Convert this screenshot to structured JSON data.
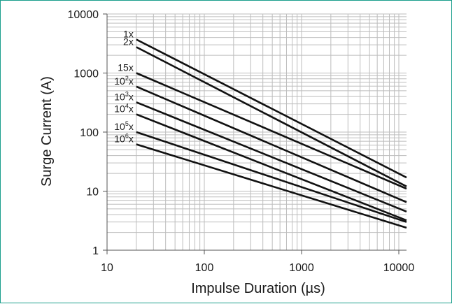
{
  "chart_data": {
    "type": "line",
    "xscale": "log",
    "yscale": "log",
    "xlabel": "Impulse Duration (µs)",
    "ylabel": "Surge Current (A)",
    "xlim": [
      10,
      12000
    ],
    "ylim": [
      1,
      10000
    ],
    "x_ticks": [
      {
        "value": 10,
        "label": "10"
      },
      {
        "value": 100,
        "label": "100"
      },
      {
        "value": 1000,
        "label": "1000"
      },
      {
        "value": 10000,
        "label": "10000"
      }
    ],
    "y_ticks": [
      {
        "value": 1,
        "label": "1"
      },
      {
        "value": 10,
        "label": "10"
      },
      {
        "value": 100,
        "label": "100"
      },
      {
        "value": 1000,
        "label": "1000"
      },
      {
        "value": 10000,
        "label": "10000"
      }
    ],
    "grid": true,
    "line_color": "#111111",
    "grid_color": "#bdbdbd",
    "frame_color": "#1a9e8c",
    "series": [
      {
        "name": "1x",
        "base": "1x",
        "sup": "",
        "points": [
          [
            20,
            3700
          ],
          [
            12000,
            17
          ]
        ]
      },
      {
        "name": "2x",
        "base": "2x",
        "sup": "",
        "points": [
          [
            20,
            2750
          ],
          [
            12000,
            12
          ]
        ]
      },
      {
        "name": "15x",
        "base": "15x",
        "sup": "",
        "points": [
          [
            20,
            1000
          ],
          [
            12000,
            11
          ]
        ]
      },
      {
        "name": "10²x",
        "base": "10",
        "sup": "2",
        "points": [
          [
            20,
            590
          ],
          [
            12000,
            6.5
          ]
        ]
      },
      {
        "name": "10³x",
        "base": "10",
        "sup": "3",
        "points": [
          [
            20,
            320
          ],
          [
            12000,
            4.5
          ]
        ]
      },
      {
        "name": "10⁴x",
        "base": "10",
        "sup": "4",
        "points": [
          [
            20,
            200
          ],
          [
            12000,
            3.2
          ]
        ]
      },
      {
        "name": "10⁵x",
        "base": "10",
        "sup": "5",
        "points": [
          [
            20,
            100
          ],
          [
            12000,
            3.0
          ]
        ]
      },
      {
        "name": "10⁶x",
        "base": "10",
        "sup": "6",
        "points": [
          [
            20,
            62
          ],
          [
            12000,
            2.4
          ]
        ]
      }
    ]
  }
}
